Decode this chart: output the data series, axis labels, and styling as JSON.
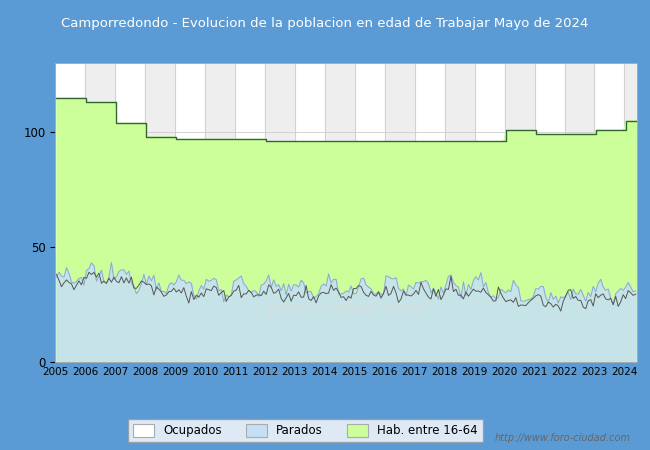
{
  "title": "Camporredondo - Evolucion de la poblacion en edad de Trabajar Mayo de 2024",
  "title_bg_color": "#5b9bd5",
  "title_text_color": "white",
  "outer_bg_color": "#5b9bd5",
  "inner_bg_color": "#ffffff",
  "plot_bg_color": "#ffffff",
  "grid_color": "#cccccc",
  "ylim": [
    0,
    130
  ],
  "yticks": [
    0,
    50,
    100
  ],
  "xlim_start": 2005,
  "xlim_end": 2024.42,
  "legend_labels": [
    "Ocupados",
    "Parados",
    "Hab. entre 16-64"
  ],
  "hab_fill_color": "#ccff99",
  "hab_line_color": "#336633",
  "parados_fill_color": "#c5e0f5",
  "parados_line_color": "#88aacc",
  "ocupados_line_color": "#555555",
  "watermark_color": "#cccccc",
  "footer_text": "http://www.foro-ciudad.com",
  "hab_annual": [
    115,
    113,
    104,
    98,
    97,
    97,
    97,
    96,
    96,
    96,
    96,
    96,
    96,
    96,
    96,
    101,
    99,
    99,
    101,
    105,
    105
  ],
  "hab_years": [
    2005,
    2006,
    2007,
    2008,
    2009,
    2010,
    2011,
    2012,
    2013,
    2014,
    2015,
    2016,
    2017,
    2018,
    2019,
    2020,
    2021,
    2022,
    2023,
    2024,
    2025
  ],
  "parados_base": [
    36,
    38,
    37,
    35,
    33,
    33,
    33,
    32,
    32,
    33,
    33,
    33,
    33,
    33,
    32,
    30,
    29,
    30,
    31,
    32
  ],
  "ocupados_base": [
    35,
    37,
    35,
    32,
    30,
    30,
    30,
    29,
    29,
    30,
    30,
    30,
    30,
    30,
    29,
    27,
    26,
    27,
    28,
    29
  ]
}
